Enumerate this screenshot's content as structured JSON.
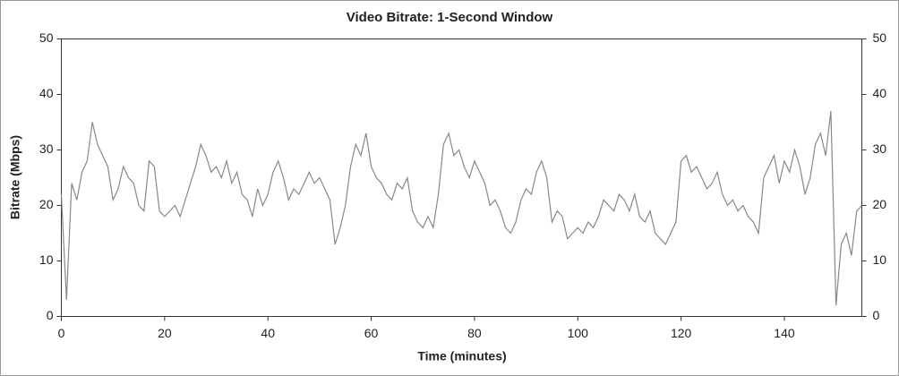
{
  "chart_data": {
    "type": "line",
    "title": "Video Bitrate: 1-Second Window",
    "x_label": "Time (minutes)",
    "y_label": "Bitrate (Mbps)",
    "x": [
      0,
      1,
      2,
      3,
      4,
      5,
      6,
      7,
      8,
      9,
      10,
      11,
      12,
      13,
      14,
      15,
      16,
      17,
      18,
      19,
      20,
      21,
      22,
      23,
      24,
      25,
      26,
      27,
      28,
      29,
      30,
      31,
      32,
      33,
      34,
      35,
      36,
      37,
      38,
      39,
      40,
      41,
      42,
      43,
      44,
      45,
      46,
      47,
      48,
      49,
      50,
      51,
      52,
      53,
      54,
      55,
      56,
      57,
      58,
      59,
      60,
      61,
      62,
      63,
      64,
      65,
      66,
      67,
      68,
      69,
      70,
      71,
      72,
      73,
      74,
      75,
      76,
      77,
      78,
      79,
      80,
      81,
      82,
      83,
      84,
      85,
      86,
      87,
      88,
      89,
      90,
      91,
      92,
      93,
      94,
      95,
      96,
      97,
      98,
      99,
      100,
      101,
      102,
      103,
      104,
      105,
      106,
      107,
      108,
      109,
      110,
      111,
      112,
      113,
      114,
      115,
      116,
      117,
      118,
      119,
      120,
      121,
      122,
      123,
      124,
      125,
      126,
      127,
      128,
      129,
      130,
      131,
      132,
      133,
      134,
      135,
      136,
      137,
      138,
      139,
      140,
      141,
      142,
      143,
      144,
      145,
      146,
      147,
      148,
      149,
      150,
      151,
      152,
      153,
      154,
      155
    ],
    "series": [
      {
        "color": "#888888",
        "values": [
          22,
          3,
          24,
          21,
          26,
          28,
          35,
          31,
          29,
          27,
          21,
          23,
          27,
          25,
          24,
          20,
          19,
          28,
          27,
          19,
          18,
          19,
          20,
          18,
          21,
          24,
          27,
          31,
          29,
          26,
          27,
          25,
          28,
          24,
          26,
          22,
          21,
          18,
          23,
          20,
          22,
          26,
          28,
          25,
          21,
          23,
          22,
          24,
          26,
          24,
          25,
          23,
          21,
          13,
          16,
          20,
          27,
          31,
          29,
          33,
          27,
          25,
          24,
          22,
          21,
          24,
          23,
          25,
          19,
          17,
          16,
          18,
          16,
          22,
          31,
          33,
          29,
          30,
          27,
          25,
          28,
          26,
          24,
          20,
          21,
          19,
          16,
          15,
          17,
          21,
          23,
          22,
          26,
          28,
          25,
          17,
          19,
          18,
          14,
          15,
          16,
          15,
          17,
          16,
          18,
          21,
          20,
          19,
          22,
          21,
          19,
          22,
          18,
          17,
          19,
          15,
          14,
          13,
          15,
          17,
          28,
          29,
          26,
          27,
          25,
          23,
          24,
          26,
          22,
          20,
          21,
          19,
          20,
          18,
          17,
          15,
          25,
          27,
          29,
          24,
          28,
          26,
          30,
          27,
          22,
          25,
          31,
          33,
          29,
          37,
          2,
          13,
          15,
          11,
          19,
          20
        ]
      }
    ],
    "xlim": [
      0,
      155
    ],
    "xticks": [
      0,
      20,
      40,
      60,
      80,
      100,
      120,
      140
    ],
    "ylim": [
      0,
      50
    ],
    "yticks": [
      0,
      10,
      20,
      30,
      40,
      50
    ],
    "y2lim": [
      0,
      50
    ],
    "y2ticks": [
      0,
      10,
      20,
      30,
      40,
      50
    ],
    "grid": false
  }
}
